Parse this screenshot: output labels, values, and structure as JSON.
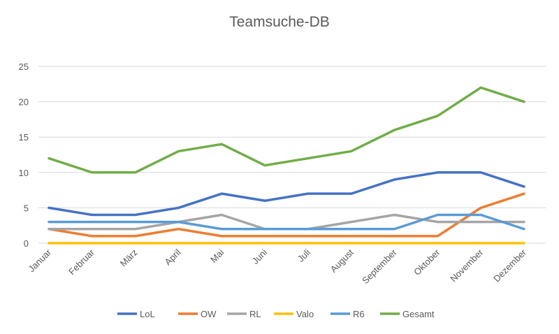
{
  "chart_data": {
    "type": "line",
    "title": "Teamsuche-DB",
    "xlabel": "",
    "ylabel": "",
    "categories": [
      "Januar",
      "Februar",
      "März",
      "April",
      "Mai",
      "Juni",
      "Juli",
      "August",
      "September",
      "Oktober",
      "November",
      "Dezember"
    ],
    "ylim": [
      0,
      25
    ],
    "yticks": [
      0,
      5,
      10,
      15,
      20,
      25
    ],
    "grid": true,
    "legend": "bottom",
    "series": [
      {
        "name": "LoL",
        "color": "#4472C4",
        "values": [
          5,
          4,
          4,
          5,
          7,
          6,
          7,
          7,
          9,
          10,
          10,
          8
        ]
      },
      {
        "name": "OW",
        "color": "#ED7D31",
        "values": [
          2,
          1,
          1,
          2,
          1,
          1,
          1,
          1,
          1,
          1,
          5,
          7
        ]
      },
      {
        "name": "RL",
        "color": "#A5A5A5",
        "values": [
          2,
          2,
          2,
          3,
          4,
          2,
          2,
          3,
          4,
          3,
          3,
          3
        ]
      },
      {
        "name": "Valo",
        "color": "#FFC000",
        "values": [
          0,
          0,
          0,
          0,
          0,
          0,
          0,
          0,
          0,
          0,
          0,
          0
        ]
      },
      {
        "name": "R6",
        "color": "#5B9BD5",
        "values": [
          3,
          3,
          3,
          3,
          2,
          2,
          2,
          2,
          2,
          4,
          4,
          2
        ]
      },
      {
        "name": "Gesamt",
        "color": "#70AD47",
        "values": [
          12,
          10,
          10,
          13,
          14,
          11,
          12,
          13,
          16,
          18,
          22,
          20
        ]
      }
    ]
  }
}
